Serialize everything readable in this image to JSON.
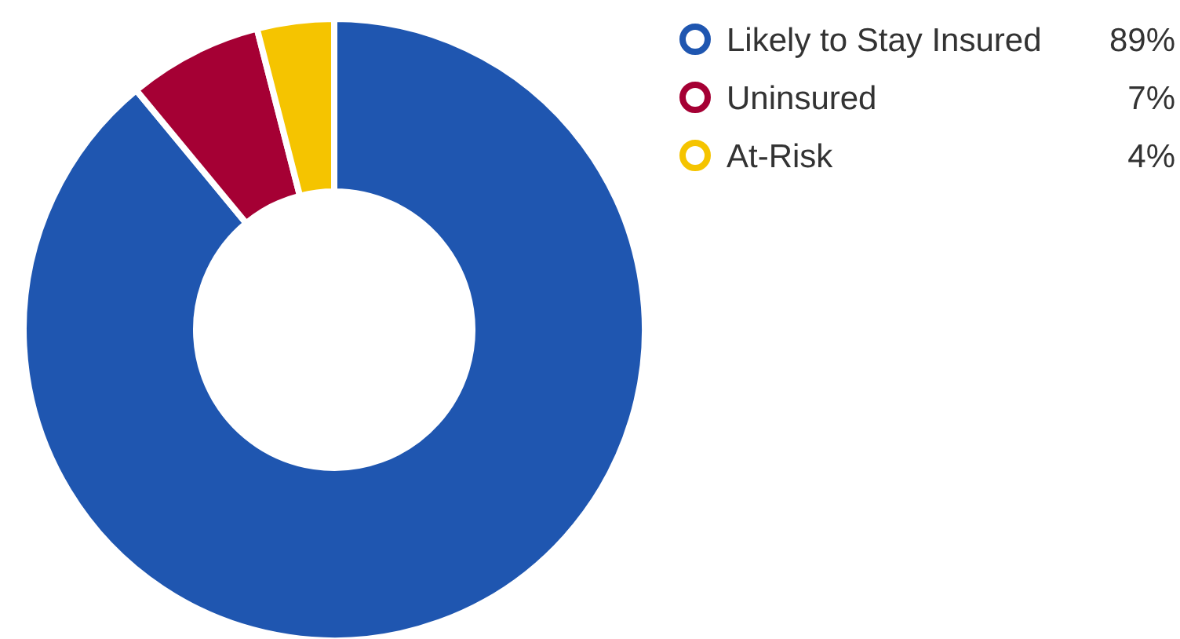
{
  "chart_data": {
    "type": "donut",
    "categories": [
      "Likely to Stay Insured",
      "Uninsured",
      "At-Risk"
    ],
    "values": [
      89,
      7,
      4
    ],
    "colors": [
      "#1f56b0",
      "#a50034",
      "#f5c400"
    ],
    "value_labels": [
      "89%",
      "7%",
      "4%"
    ],
    "legend": "top right"
  }
}
